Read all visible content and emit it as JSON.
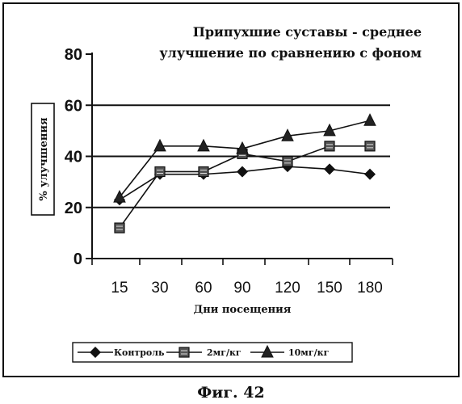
{
  "figure_caption": "Фиг. 42",
  "chart_data": {
    "type": "line",
    "title_lines": [
      "Припухшие суставы - среднее",
      "улучшение по сравнению с фоном"
    ],
    "xlabel": "Дни посещения",
    "ylabel": "% улучшения",
    "categories": [
      "15",
      "30",
      "60",
      "90",
      "120",
      "150",
      "180"
    ],
    "y_ticks": [
      "0",
      "20",
      "40",
      "60",
      "80"
    ],
    "ylim": [
      0,
      80
    ],
    "grid": "horizontal",
    "legend_position": "bottom",
    "series": [
      {
        "name": "Контроль",
        "marker": "diamond",
        "values": [
          23,
          33,
          33,
          34,
          36,
          35,
          33
        ]
      },
      {
        "name": "2мг/кг",
        "marker": "square",
        "values": [
          12,
          34,
          34,
          41,
          38,
          44,
          44
        ]
      },
      {
        "name": "10мг/кг",
        "marker": "triangle",
        "values": [
          24,
          44,
          44,
          43,
          48,
          50,
          54
        ]
      }
    ]
  }
}
